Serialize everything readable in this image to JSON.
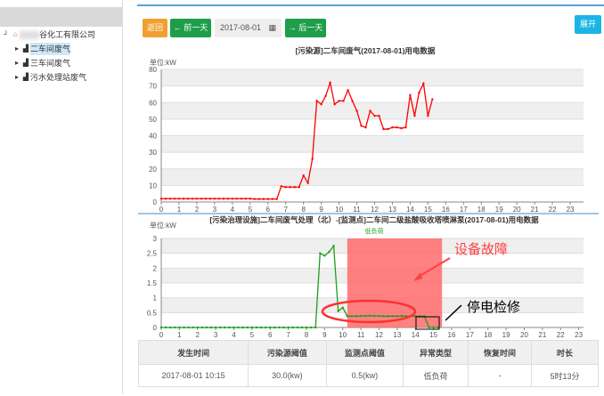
{
  "sidebar": {
    "root": "谷化工有限公司",
    "items": [
      {
        "label": "二车间废气",
        "selected": true
      },
      {
        "label": "三车间废气"
      },
      {
        "label": "污水处理站废气"
      }
    ]
  },
  "toolbar": {
    "back": "返回",
    "prev": "← 前一天",
    "date": "2017-08-01",
    "next": "→ 后一天",
    "expand": "展开"
  },
  "chart_data": [
    {
      "type": "line",
      "title": "[污染源]二车间废气(2017-08-01)用电数据",
      "ylabel": "单位:kW",
      "xlim": [
        0,
        24
      ],
      "ylim": [
        0,
        80
      ],
      "yticks": [
        0,
        10,
        20,
        30,
        40,
        50,
        60,
        70,
        80
      ],
      "xticks": [
        0,
        1,
        2,
        3,
        4,
        5,
        6,
        7,
        8,
        9,
        10,
        11,
        12,
        13,
        14,
        15,
        16,
        17,
        18,
        19,
        20,
        21,
        22,
        23
      ],
      "color": "#ff0000",
      "x": [
        0,
        0.25,
        0.5,
        0.75,
        1,
        1.25,
        1.5,
        1.75,
        2,
        2.25,
        2.5,
        2.75,
        3,
        3.25,
        3.5,
        3.75,
        4,
        4.25,
        4.5,
        4.75,
        5,
        5.25,
        5.5,
        5.75,
        6,
        6.25,
        6.5,
        6.75,
        7,
        7.25,
        7.5,
        7.75,
        8,
        8.25,
        8.5,
        8.75,
        9,
        9.25,
        9.5,
        9.75,
        10,
        10.25,
        10.5,
        10.75,
        11,
        11.25,
        11.5,
        11.75,
        12,
        12.25,
        12.5,
        12.75,
        13,
        13.25,
        13.5,
        13.75,
        14,
        14.25,
        14.5,
        14.75,
        15,
        15.25
      ],
      "y": [
        2,
        2,
        2,
        2,
        2,
        2,
        2,
        2,
        2,
        2,
        2,
        2,
        2,
        2,
        2,
        2,
        2,
        2,
        2,
        2,
        2,
        1.8,
        1.8,
        1.8,
        1.8,
        1.8,
        1.8,
        9.5,
        9,
        9,
        9,
        9,
        16,
        11.5,
        26,
        61,
        59,
        64,
        72,
        59,
        61,
        61,
        67.5,
        61,
        55,
        46,
        45,
        55,
        52,
        52,
        44,
        44,
        45,
        45,
        44.5,
        45,
        64.5,
        52,
        66,
        71.5,
        52,
        62
      ]
    },
    {
      "type": "line",
      "title": "[污染治理设施]二车间废气处理（北）-[监测点]二车间二级盐酸吸收塔喷淋泵(2017-08-01)用电数据",
      "ylabel": "单位:kW",
      "legend": "低负荷",
      "legend_position": "top",
      "xlim": [
        0,
        24
      ],
      "ylim": [
        0,
        3
      ],
      "yticks": [
        0,
        0.5,
        1,
        1.5,
        2,
        2.5,
        3
      ],
      "xticks": [
        0,
        1,
        2,
        3,
        4,
        5,
        6,
        7,
        8,
        9,
        10,
        11,
        12,
        13,
        14,
        15,
        16,
        17,
        18,
        19,
        20,
        21,
        22,
        23
      ],
      "color": "#1e9e1e",
      "band": {
        "from": 10.25,
        "to": 15.47,
        "color": "#ff6b6b"
      },
      "x": [
        0,
        0.25,
        0.5,
        0.75,
        1,
        1.25,
        1.5,
        1.75,
        2,
        2.25,
        2.5,
        2.75,
        3,
        3.25,
        3.5,
        3.75,
        4,
        4.25,
        4.5,
        4.75,
        5,
        5.25,
        5.5,
        5.75,
        6,
        6.25,
        6.5,
        6.75,
        7,
        7.25,
        7.5,
        7.75,
        8,
        8.25,
        8.5,
        8.75,
        9,
        9.25,
        9.5,
        9.75,
        10,
        10.25,
        10.5,
        10.75,
        11,
        11.25,
        11.5,
        11.75,
        12,
        12.25,
        12.5,
        12.75,
        13,
        13.25,
        13.5,
        13.75,
        14,
        14.25,
        14.5,
        14.75,
        15,
        15.25
      ],
      "y": [
        0,
        0,
        0,
        0,
        0,
        0,
        0,
        0,
        0,
        0,
        0,
        0,
        0,
        0,
        0,
        0,
        0,
        0,
        0,
        0,
        0,
        0,
        0,
        0,
        0,
        0,
        0,
        0,
        0,
        0,
        0,
        0,
        0,
        0,
        0,
        2.5,
        2.42,
        2.55,
        2.75,
        0.55,
        0.67,
        0.38,
        0.38,
        0.38,
        0.39,
        0.39,
        0.4,
        0.39,
        0.39,
        0.38,
        0.38,
        0.38,
        0.38,
        0.39,
        0.38,
        0.38,
        0.38,
        0.38,
        0.38,
        0,
        0,
        0
      ]
    }
  ],
  "annotations": {
    "fault": "设备故障",
    "outage": "停电检修"
  },
  "table": {
    "headers": [
      "发生时间",
      "污染源阈值",
      "监测点阈值",
      "异常类型",
      "恢复时间",
      "时长"
    ],
    "rows": [
      [
        "2017-08-01 10:15",
        "30.0(kw)",
        "0.5(kw)",
        "低负荷",
        "-",
        "5时13分"
      ]
    ]
  }
}
